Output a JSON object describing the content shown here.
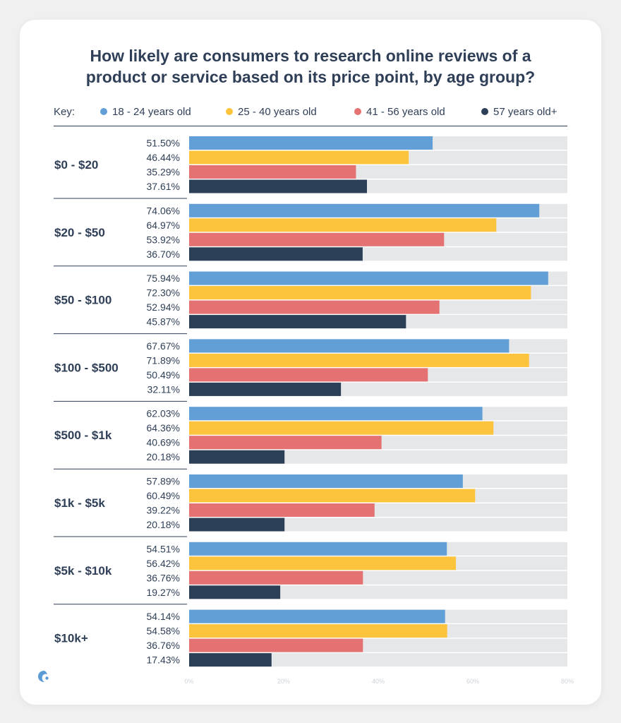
{
  "title_line1": "How likely are consumers to research online reviews of a",
  "title_line2": "product or service based on its price point, by age group?",
  "key_label": "Key:",
  "colors": {
    "track": "#e6e7e8",
    "divider": "#2f3f57",
    "text": "#2f3f57",
    "tick_text": "#cfd3d8"
  },
  "chart_data": {
    "type": "bar",
    "orientation": "horizontal",
    "title": "How likely are consumers to research online reviews of a product or service based on its price point, by age group?",
    "xlim": [
      0,
      80
    ],
    "x_ticks": [
      "0%",
      "20%",
      "40%",
      "60%",
      "80%"
    ],
    "x_tick_values": [
      0,
      20,
      40,
      60,
      80
    ],
    "legend_position": "top",
    "categories": [
      "$0 - $20",
      "$20 - $50",
      "$50 - $100",
      "$100 - $500",
      "$500 - $1k",
      "$1k - $5k",
      "$5k - $10k",
      "$10k+"
    ],
    "series": [
      {
        "name": "18 - 24 years old",
        "color": "#629fd6",
        "values": [
          51.5,
          74.06,
          75.94,
          67.67,
          62.03,
          57.89,
          54.51,
          54.14
        ]
      },
      {
        "name": "25 - 40 years old",
        "color": "#fcc33c",
        "values": [
          46.44,
          64.97,
          72.3,
          71.89,
          64.36,
          60.49,
          56.42,
          54.58
        ]
      },
      {
        "name": "41 - 56 years old",
        "color": "#e57272",
        "values": [
          35.29,
          53.92,
          52.94,
          50.49,
          40.69,
          39.22,
          36.76,
          36.76
        ]
      },
      {
        "name": "57 years old+",
        "color": "#2b3f57",
        "values": [
          37.61,
          36.7,
          45.87,
          32.11,
          20.18,
          20.18,
          19.27,
          17.43
        ]
      }
    ],
    "value_labels": [
      [
        "51.50%",
        "46.44%",
        "35.29%",
        "37.61%"
      ],
      [
        "74.06%",
        "64.97%",
        "53.92%",
        "36.70%"
      ],
      [
        "75.94%",
        "72.30%",
        "52.94%",
        "45.87%"
      ],
      [
        "67.67%",
        "71.89%",
        "50.49%",
        "32.11%"
      ],
      [
        "62.03%",
        "64.36%",
        "40.69%",
        "20.18%"
      ],
      [
        "57.89%",
        "60.49%",
        "39.22%",
        "20.18%"
      ],
      [
        "54.51%",
        "56.42%",
        "36.76%",
        "19.27%"
      ],
      [
        "54.14%",
        "54.58%",
        "36.76%",
        "17.43%"
      ]
    ]
  }
}
